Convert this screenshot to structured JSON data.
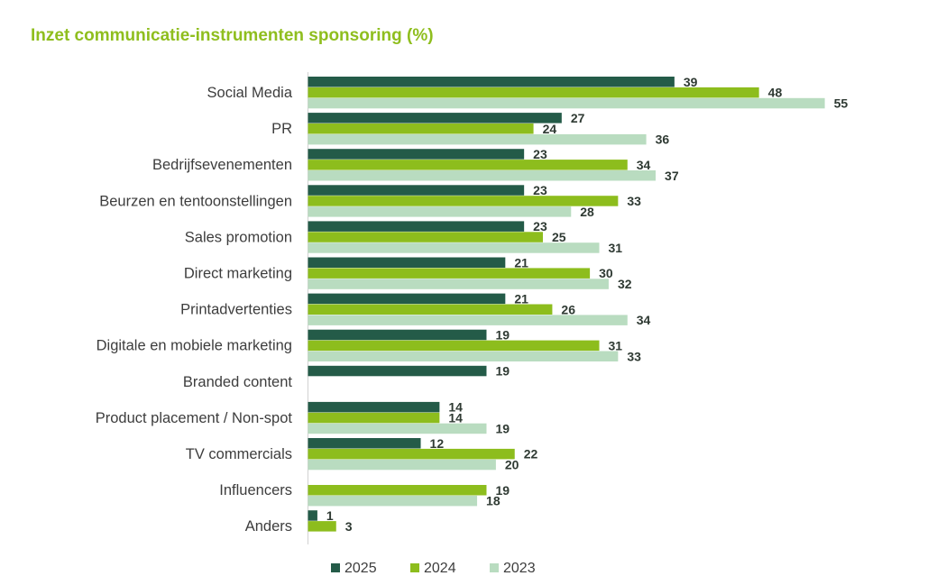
{
  "chart_data": {
    "type": "bar",
    "orientation": "horizontal",
    "title": "Inzet communicatie-instrumenten sponsoring (%)",
    "xlabel": "",
    "ylabel": "",
    "categories": [
      "Social Media",
      "PR",
      "Bedrijfsevenementen",
      "Beurzen en tentoonstellingen",
      "Sales promotion",
      "Direct marketing",
      "Printadvertenties",
      "Digitale en mobiele marketing",
      "Branded content",
      "Product placement / Non-spot",
      "TV commercials",
      "Influencers",
      "Anders"
    ],
    "series": [
      {
        "name": "2025",
        "color": "#245b48",
        "values": [
          39,
          27,
          23,
          23,
          23,
          21,
          21,
          19,
          19,
          14,
          12,
          null,
          1
        ]
      },
      {
        "name": "2024",
        "color": "#8dbd1d",
        "values": [
          48,
          24,
          34,
          33,
          25,
          30,
          26,
          31,
          null,
          14,
          22,
          19,
          3
        ]
      },
      {
        "name": "2023",
        "color": "#b9dcc0",
        "values": [
          55,
          36,
          37,
          28,
          31,
          32,
          34,
          33,
          null,
          19,
          20,
          18,
          null
        ]
      }
    ],
    "legend_position": "bottom",
    "grid": false
  }
}
